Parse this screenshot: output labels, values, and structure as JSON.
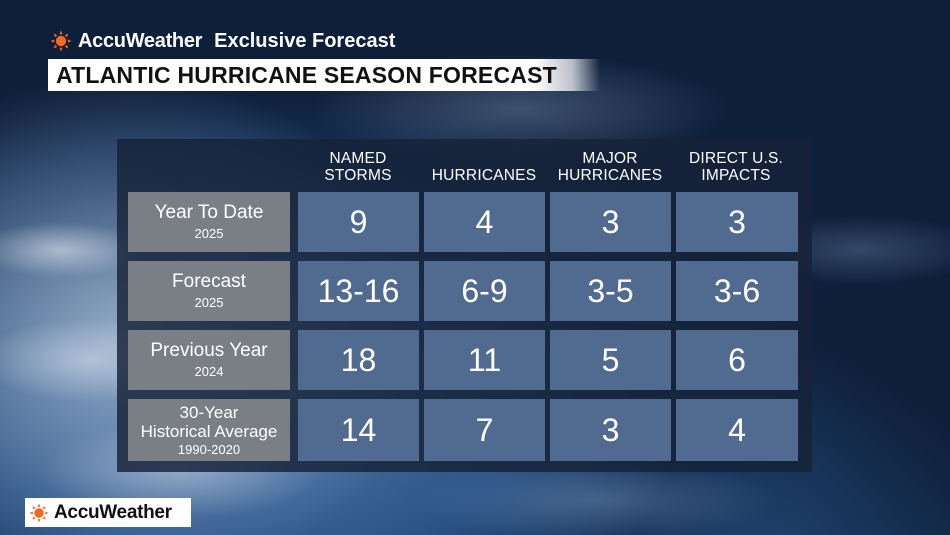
{
  "colors": {
    "brand_orange": "#f26a21",
    "row_label_bg": "#7a7f86",
    "cell_bg": "#506b8f",
    "panel_bg": "#162238"
  },
  "brand": {
    "icon": "sun-icon",
    "name": "AccuWeather",
    "subtitle": "Exclusive Forecast"
  },
  "title": "ATLANTIC HURRICANE SEASON FORECAST",
  "table": {
    "columns": [
      {
        "line1": "NAMED",
        "line2": "STORMS"
      },
      {
        "line1": "",
        "line2": "HURRICANES"
      },
      {
        "line1": "MAJOR",
        "line2": "HURRICANES"
      },
      {
        "line1": "DIRECT U.S.",
        "line2": "IMPACTS"
      }
    ],
    "rows": [
      {
        "label_lines": [
          "Year To Date"
        ],
        "sub": "2025",
        "values": [
          "9",
          "4",
          "3",
          "3"
        ]
      },
      {
        "label_lines": [
          "Forecast"
        ],
        "sub": "2025",
        "values": [
          "13-16",
          "6-9",
          "3-5",
          "3-6"
        ]
      },
      {
        "label_lines": [
          "Previous Year"
        ],
        "sub": "2024",
        "values": [
          "18",
          "11",
          "5",
          "6"
        ]
      },
      {
        "label_lines": [
          "30-Year",
          "Historical Average"
        ],
        "sub": "1990-2020",
        "values": [
          "14",
          "7",
          "3",
          "4"
        ]
      }
    ]
  },
  "footer": {
    "icon": "sun-icon",
    "name": "AccuWeather"
  }
}
